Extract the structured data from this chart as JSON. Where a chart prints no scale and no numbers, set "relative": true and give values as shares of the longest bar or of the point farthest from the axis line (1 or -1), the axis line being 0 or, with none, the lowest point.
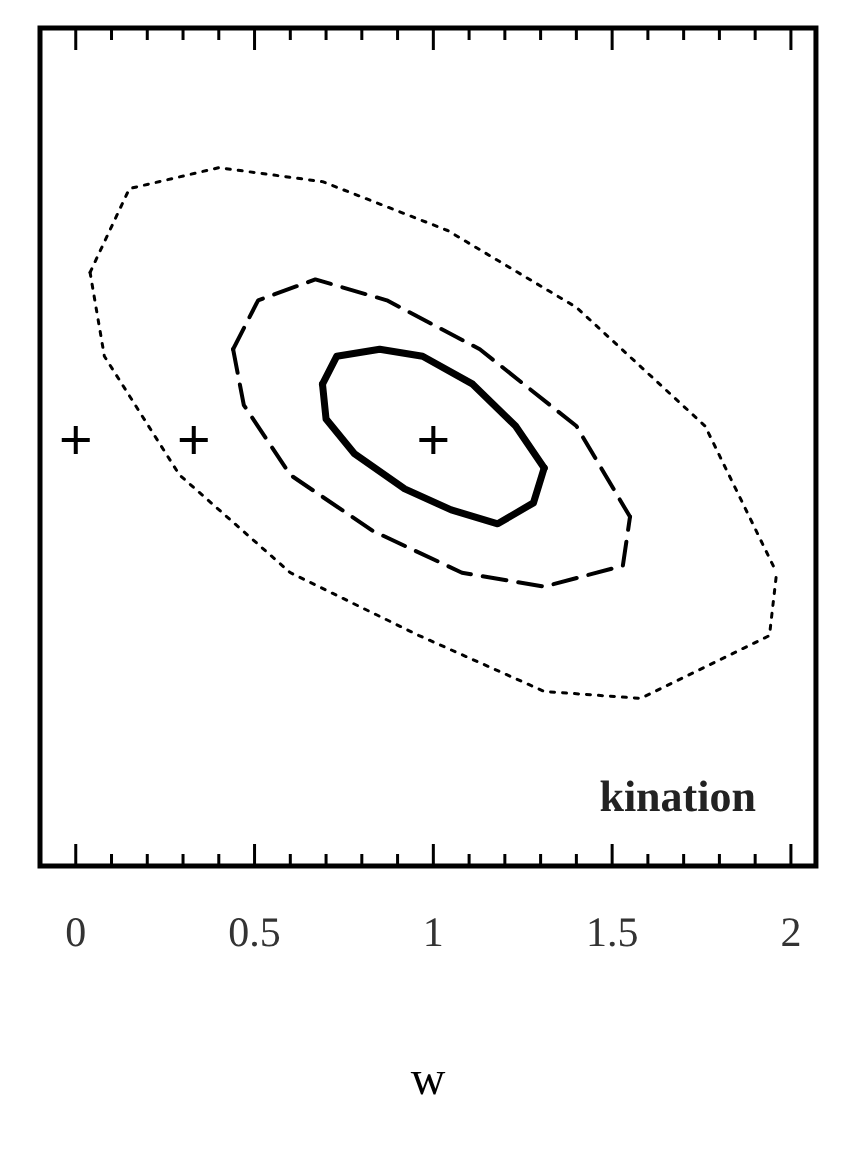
{
  "chart_data": {
    "type": "line",
    "xlabel": "w",
    "relative": true,
    "xlim": [
      -0.1,
      2.07
    ],
    "xticks": [
      {
        "value": 0,
        "label": "0"
      },
      {
        "value": 0.1,
        "label": null
      },
      {
        "value": 0.2,
        "label": null
      },
      {
        "value": 0.3,
        "label": null
      },
      {
        "value": 0.4,
        "label": null
      },
      {
        "value": 0.5,
        "label": "0.5"
      },
      {
        "value": 0.6,
        "label": null
      },
      {
        "value": 0.7,
        "label": null
      },
      {
        "value": 0.8,
        "label": null
      },
      {
        "value": 0.9,
        "label": null
      },
      {
        "value": 1,
        "label": "1"
      },
      {
        "value": 1.1,
        "label": null
      },
      {
        "value": 1.2,
        "label": null
      },
      {
        "value": 1.3,
        "label": null
      },
      {
        "value": 1.4,
        "label": null
      },
      {
        "value": 1.5,
        "label": "1.5"
      },
      {
        "value": 1.6,
        "label": null
      },
      {
        "value": 1.7,
        "label": null
      },
      {
        "value": 1.8,
        "label": null
      },
      {
        "value": 1.9,
        "label": null
      },
      {
        "value": 2,
        "label": "2"
      }
    ],
    "series": [
      {
        "type": "line",
        "color": "#000000",
        "line_style": "solid",
        "x": [
          0.69,
          0.73,
          0.85,
          0.97,
          1.11,
          1.23,
          1.31
        ],
        "values": [
          0.69,
          0.73,
          0.74,
          0.73,
          0.69,
          0.63,
          0.57
        ]
      },
      {
        "type": "line",
        "color": "#000000",
        "line_style": "solid",
        "x": [
          0.69,
          0.7,
          0.78,
          0.92,
          1.05,
          1.18,
          1.28,
          1.31
        ],
        "values": [
          0.69,
          0.64,
          0.59,
          0.54,
          0.51,
          0.49,
          0.52,
          0.57
        ]
      },
      {
        "type": "line",
        "color": "#000000",
        "line_style": "dashed",
        "x": [
          0.44,
          0.51,
          0.67,
          0.87,
          1.13,
          1.4,
          1.55
        ],
        "values": [
          0.74,
          0.81,
          0.84,
          0.81,
          0.74,
          0.63,
          0.5
        ]
      },
      {
        "type": "line",
        "color": "#000000",
        "line_style": "dashed",
        "x": [
          0.44,
          0.47,
          0.6,
          0.83,
          1.08,
          1.31,
          1.53,
          1.55
        ],
        "values": [
          0.74,
          0.66,
          0.56,
          0.48,
          0.42,
          0.4,
          0.43,
          0.5
        ]
      },
      {
        "type": "line",
        "color": "#000000",
        "line_style": "dotted",
        "x": [
          0.04,
          0.15,
          0.4,
          0.69,
          1.04,
          1.4,
          1.76,
          1.96
        ],
        "values": [
          0.85,
          0.97,
          1.0,
          0.98,
          0.91,
          0.8,
          0.63,
          0.42
        ]
      },
      {
        "type": "line",
        "color": "#000000",
        "line_style": "dotted",
        "x": [
          0.04,
          0.08,
          0.29,
          0.6,
          0.96,
          1.31,
          1.58,
          1.94,
          1.96
        ],
        "values": [
          0.85,
          0.73,
          0.56,
          0.42,
          0.33,
          0.25,
          0.24,
          0.33,
          0.42
        ]
      },
      {
        "type": "scatter",
        "color": "#000000",
        "marker": "cross",
        "x": [
          0,
          0.33,
          1
        ],
        "values": [
          0.61,
          0.61,
          0.61
        ]
      }
    ],
    "annotations": [
      "kination"
    ]
  }
}
